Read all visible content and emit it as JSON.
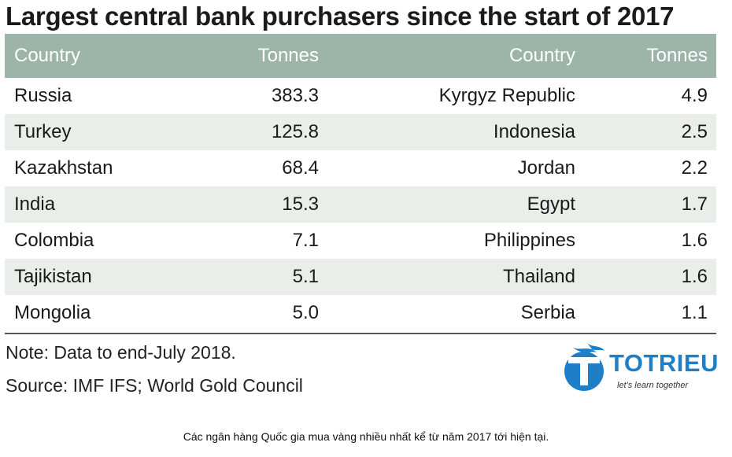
{
  "chart_data": {
    "type": "table",
    "title": "Largest central bank purchasers since the start of 2017",
    "columns": [
      "Country",
      "Tonnes",
      "Country",
      "Tonnes"
    ],
    "rows": [
      [
        "Russia",
        "383.3",
        "Kyrgyz Republic",
        "4.9"
      ],
      [
        "Turkey",
        "125.8",
        "Indonesia",
        "2.5"
      ],
      [
        "Kazakhstan",
        "68.4",
        "Jordan",
        "2.2"
      ],
      [
        "India",
        "15.3",
        "Egypt",
        "1.7"
      ],
      [
        "Colombia",
        "7.1",
        "Philippines",
        "1.6"
      ],
      [
        "Tajikistan",
        "5.1",
        "Thailand",
        "1.6"
      ],
      [
        "Mongolia",
        "5.0",
        "Serbia",
        "1.1"
      ]
    ],
    "note": "Note: Data to end-July 2018.",
    "source": "Source: IMF IFS; World Gold Council"
  },
  "colors": {
    "header_bg": "#9db4a9",
    "stripe_bg": "#e9eeeb",
    "brand_blue": "#1f7fc6"
  },
  "logo": {
    "brand": "TOTRIEU",
    "tagline": "let's learn together",
    "icon": "flame-t-logo-icon"
  },
  "caption": "Các ngân hàng Quốc gia mua vàng nhiều nhất kể từ năm 2017 tới hiện tại."
}
